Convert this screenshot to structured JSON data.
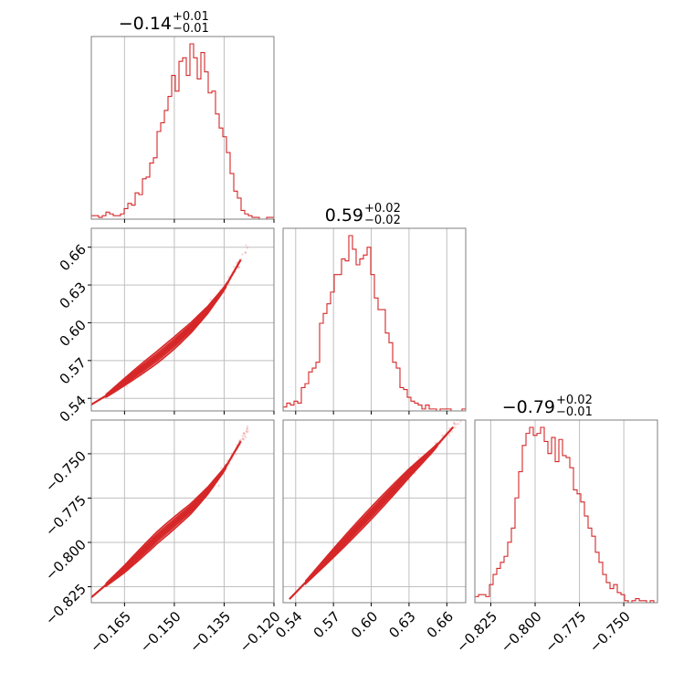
{
  "colors": {
    "accent": "#d62728",
    "grid": "#bfbfbf",
    "frame": "#7f7f7f"
  },
  "chart_data": {
    "type": "corner",
    "grid": true,
    "parameters": [
      {
        "range": [
          -0.175,
          -0.12
        ],
        "ticks": [
          -0.165,
          -0.15,
          -0.135,
          -0.12
        ],
        "tick_labels": [
          "−0.165",
          "−0.150",
          "−0.135",
          "−0.120"
        ],
        "title": {
          "value": "−0.14",
          "sup": "+0.01",
          "sub": "−0.01"
        }
      },
      {
        "range": [
          0.53,
          0.675
        ],
        "ticks": [
          0.54,
          0.57,
          0.6,
          0.63,
          0.66
        ],
        "tick_labels": [
          "0.54",
          "0.57",
          "0.60",
          "0.63",
          "0.66"
        ],
        "title": {
          "value": "0.59",
          "sup": "+0.02",
          "sub": "−0.02"
        }
      },
      {
        "range": [
          -0.834,
          -0.731
        ],
        "ticks": [
          -0.825,
          -0.8,
          -0.775,
          -0.75
        ],
        "tick_labels": [
          "−0.825",
          "−0.800",
          "−0.775",
          "−0.750"
        ],
        "title": {
          "value": "−0.79",
          "sup": "+0.02",
          "sub": "−0.01"
        }
      }
    ],
    "histograms": [
      {
        "param": 0,
        "bin_start": -0.175,
        "bin_width": 0.0011,
        "counts": [
          2,
          2,
          1,
          2,
          4,
          3,
          2,
          2,
          3,
          6,
          9,
          8,
          15,
          14,
          23,
          24,
          32,
          35,
          50,
          55,
          62,
          70,
          82,
          73,
          90,
          92,
          82,
          100,
          92,
          80,
          95,
          84,
          72,
          73,
          60,
          52,
          47,
          38,
          26,
          16,
          12,
          5,
          3,
          2,
          1,
          1,
          0,
          0,
          1,
          1
        ]
      },
      {
        "param": 1,
        "bin_start": 0.53,
        "bin_width": 0.0029,
        "counts": [
          2,
          4,
          3,
          5,
          4,
          12,
          14,
          20,
          22,
          25,
          45,
          50,
          55,
          61,
          70,
          70,
          78,
          77,
          90,
          83,
          75,
          78,
          80,
          84,
          70,
          58,
          52,
          52,
          40,
          35,
          25,
          22,
          12,
          11,
          7,
          5,
          4,
          3,
          1,
          3,
          1,
          1,
          0,
          1,
          1,
          1,
          0,
          0,
          0,
          1
        ]
      },
      {
        "param": 2,
        "bin_start": -0.834,
        "bin_width": 0.00206,
        "counts": [
          3,
          4,
          4,
          3,
          9,
          14,
          17,
          20,
          23,
          30,
          37,
          52,
          65,
          78,
          84,
          87,
          83,
          84,
          87,
          80,
          74,
          82,
          70,
          81,
          73,
          72,
          67,
          56,
          54,
          50,
          43,
          37,
          33,
          25,
          20,
          14,
          10,
          7,
          9,
          5,
          4,
          1,
          0,
          1,
          2,
          1,
          1,
          0,
          1,
          0
        ]
      }
    ],
    "pair_means": [
      {
        "x_param": 0,
        "y_param": 1,
        "x": [
          -0.175,
          -0.17,
          -0.165,
          -0.16,
          -0.155,
          -0.15,
          -0.145,
          -0.14,
          -0.135,
          -0.13
        ],
        "y": [
          0.535,
          0.543,
          0.553,
          0.563,
          0.573,
          0.584,
          0.596,
          0.61,
          0.627,
          0.65
        ]
      },
      {
        "x_param": 0,
        "y_param": 2,
        "x": [
          -0.175,
          -0.17,
          -0.165,
          -0.16,
          -0.155,
          -0.15,
          -0.145,
          -0.14,
          -0.135,
          -0.13
        ],
        "y": [
          -0.831,
          -0.823,
          -0.815,
          -0.806,
          -0.797,
          -0.789,
          -0.781,
          -0.771,
          -0.759,
          -0.743
        ]
      },
      {
        "x_param": 1,
        "y_param": 2,
        "x": [
          0.535,
          0.55,
          0.57,
          0.59,
          0.61,
          0.63,
          0.65,
          0.665
        ],
        "y": [
          -0.832,
          -0.821,
          -0.806,
          -0.791,
          -0.776,
          -0.761,
          -0.747,
          -0.735
        ]
      }
    ]
  }
}
